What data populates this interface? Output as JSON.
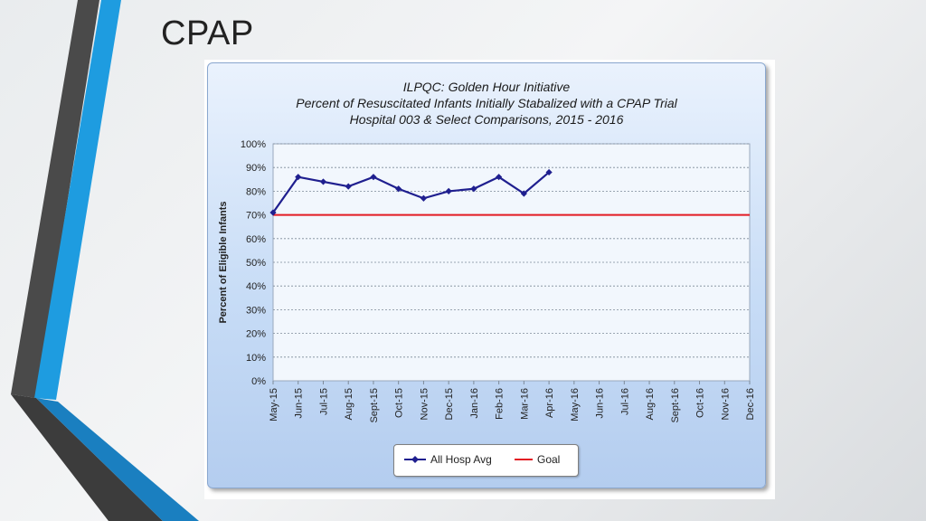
{
  "slide": {
    "title": "CPAP"
  },
  "colors": {
    "series": "#1f1f8f",
    "goal": "#e31b23",
    "accent_blue": "#1e9ce0",
    "accent_dark": "#4a4a4a"
  },
  "chart_data": {
    "type": "line",
    "title_lines": [
      "ILPQC: Golden Hour Initiative",
      "Percent of Resuscitated Infants Initially Stabalized with a CPAP Trial",
      "Hospital 003 & Select Comparisons, 2015 - 2016"
    ],
    "ylabel": "Percent of Eligible Infants",
    "xlabel": "",
    "ylim": [
      0,
      100
    ],
    "yticks": [
      "0%",
      "10%",
      "20%",
      "30%",
      "40%",
      "50%",
      "60%",
      "70%",
      "80%",
      "90%",
      "100%"
    ],
    "categories": [
      "May-15",
      "Jun-15",
      "Jul-15",
      "Aug-15",
      "Sept-15",
      "Oct-15",
      "Nov-15",
      "Dec-15",
      "Jan-16",
      "Feb-16",
      "Mar-16",
      "Apr-16",
      "May-16",
      "Jun-16",
      "Jul-16",
      "Aug-16",
      "Sept-16",
      "Oct-16",
      "Nov-16",
      "Dec-16"
    ],
    "series": [
      {
        "name": "All Hosp Avg",
        "values": [
          71,
          86,
          84,
          82,
          86,
          81,
          77,
          80,
          81,
          86,
          79,
          88,
          null,
          null,
          null,
          null,
          null,
          null,
          null,
          null
        ]
      }
    ],
    "goal": {
      "name": "Goal",
      "value": 70
    },
    "grid": true,
    "legend": "bottom-center"
  }
}
